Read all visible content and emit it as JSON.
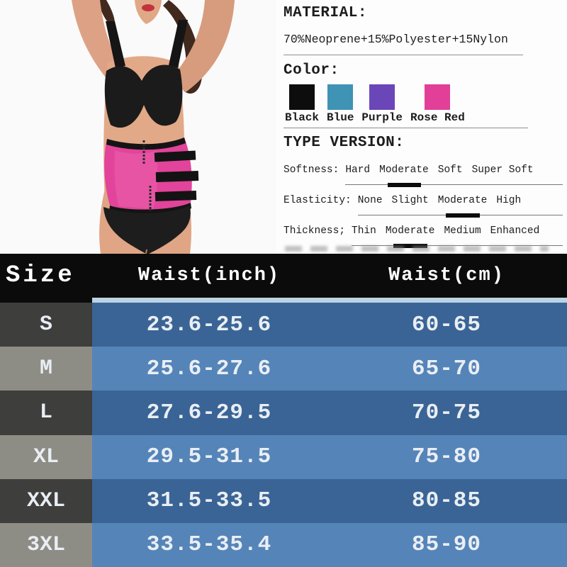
{
  "info": {
    "material": {
      "heading": "MATERIAL:",
      "value": "70%Neoprene+15%Polyester+15Nylon"
    },
    "color": {
      "heading": "Color:",
      "swatches": [
        {
          "label": "Black",
          "hex": "#0d0d0d"
        },
        {
          "label": "Blue",
          "hex": "#3f93b5"
        },
        {
          "label": "Purple",
          "hex": "#6b46b8"
        },
        {
          "label": "Rose Red",
          "hex": "#e23f98"
        }
      ]
    },
    "type_version": {
      "heading": "TYPE VERSION:",
      "attributes": [
        {
          "label": "Softness:",
          "options": [
            "Hard",
            "Moderate",
            "Soft",
            "Super Soft"
          ],
          "selected": "Moderate",
          "selected_index": 1
        },
        {
          "label": "Elasticity:",
          "options": [
            "None",
            "Slight",
            "Moderate",
            "High"
          ],
          "selected": "Moderate",
          "selected_index": 2
        },
        {
          "label": "Thickness;",
          "options": [
            "Thin",
            "Moderate",
            "Medium",
            "Enhanced"
          ],
          "selected": "Moderate",
          "selected_index": 1
        }
      ]
    }
  },
  "size_table": {
    "headers": [
      "Size",
      "Waist(inch)",
      "Waist(cm)"
    ],
    "rows": [
      {
        "size": "S",
        "inch": "23.6-25.6",
        "cm": "60-65"
      },
      {
        "size": "M",
        "inch": "25.6-27.6",
        "cm": "65-70"
      },
      {
        "size": "L",
        "inch": "27.6-29.5",
        "cm": "70-75"
      },
      {
        "size": "XL",
        "inch": "29.5-31.5",
        "cm": "75-80"
      },
      {
        "size": "XXL",
        "inch": "31.5-33.5",
        "cm": "80-85"
      },
      {
        "size": "3XL",
        "inch": "33.5-35.4",
        "cm": "85-90"
      }
    ]
  },
  "palette": {
    "header_bg": "#0b0b0b",
    "size_dark": "#3e3e3d",
    "size_light": "#8e8d85",
    "blue_dark": "#3a6495",
    "blue_light": "#5584b8",
    "strip": "#bdd2e4",
    "table_text": "#e9eef4",
    "product_rose": "#e2439b"
  }
}
